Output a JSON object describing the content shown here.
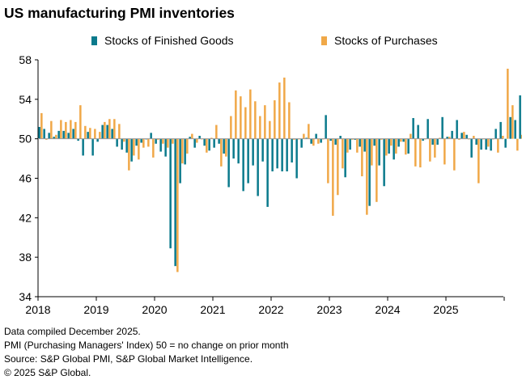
{
  "title": "US manufacturing PMI inventories",
  "footnotes": [
    "Data compiled December 2025.",
    "PMI (Purchasing Managers' Index) 50 = no change on prior month",
    "Source: S&P Global PMI, S&P Global Market Intelligence.",
    "© 2025 S&P Global."
  ],
  "chart_data": {
    "type": "bar",
    "title": "US manufacturing PMI inventories",
    "baseline": 50,
    "ylim": [
      34,
      58
    ],
    "yticks": [
      34,
      38,
      42,
      46,
      50,
      54,
      58
    ],
    "xticks": [
      "2018",
      "2019",
      "2020",
      "2021",
      "2022",
      "2023",
      "2024",
      "2025"
    ],
    "grid": false,
    "legend_position": "top",
    "x_start": "2018-01",
    "series": [
      {
        "name": "Stocks of Finished Goods",
        "color": "#0b7a8c",
        "values": [
          51.2,
          51.0,
          50.6,
          50.2,
          50.8,
          50.8,
          50.6,
          51.0,
          49.8,
          48.3,
          50.7,
          48.3,
          49.7,
          51.4,
          51.4,
          51.0,
          49.2,
          48.9,
          48.6,
          47.7,
          49.3,
          49.6,
          50.0,
          50.6,
          49.5,
          48.7,
          48.2,
          38.9,
          37.1,
          45.5,
          47.4,
          50.2,
          49.1,
          50.3,
          49.3,
          48.8,
          49.1,
          49.5,
          48.5,
          45.1,
          48.0,
          47.5,
          44.7,
          45.5,
          47.3,
          44.2,
          47.7,
          43.1,
          46.7,
          47.0,
          46.7,
          46.7,
          47.6,
          46.0,
          49.1,
          50.1,
          49.5,
          50.5,
          49.6,
          52.4,
          49.8,
          49.4,
          50.3,
          46.1,
          48.9,
          49.9,
          49.2,
          48.7,
          43.2,
          49.3,
          47.3,
          45.2,
          48.5,
          47.9,
          49.2,
          49.7,
          48.5,
          52.1,
          51.4,
          49.8,
          52.0,
          49.4,
          49.4,
          52.2,
          50.2,
          50.8,
          51.9,
          50.6,
          50.4,
          48.1,
          49.4,
          48.9,
          48.9,
          48.8,
          51.0,
          51.7,
          49.1,
          52.2,
          51.9,
          54.4,
          54.9
        ]
      },
      {
        "name": "Stocks of Purchases",
        "color": "#f0a848",
        "values": [
          52.6,
          49.9,
          51.8,
          50.4,
          51.9,
          51.7,
          51.9,
          51.7,
          53.4,
          51.3,
          51.1,
          51.0,
          50.7,
          51.7,
          52.0,
          52.0,
          51.5,
          49.7,
          46.8,
          48.3,
          47.9,
          49.1,
          49.2,
          48.1,
          49.9,
          49.5,
          49.1,
          49.5,
          36.5,
          47.5,
          48.5,
          50.5,
          49.6,
          50.0,
          48.6,
          50.1,
          51.4,
          47.2,
          48.2,
          52.3,
          54.9,
          54.3,
          53.2,
          55.0,
          53.8,
          52.3,
          53.4,
          51.8,
          53.9,
          55.7,
          56.2,
          53.7,
          49.9,
          50.0,
          50.5,
          51.5,
          49.3,
          49.5,
          50.0,
          45.5,
          42.2,
          44.3,
          47.0,
          48.6,
          49.9,
          48.6,
          46.2,
          42.3,
          47.3,
          43.6,
          49.9,
          48.3,
          49.3,
          48.5,
          49.7,
          48.4,
          50.5,
          47.2,
          47.1,
          50.0,
          47.7,
          48.1,
          50.1,
          47.4,
          50.2,
          46.8,
          49.9,
          50.7,
          50.0,
          50.3,
          45.5,
          50.0,
          49.2,
          50.0,
          48.6,
          50.3,
          57.1,
          53.4,
          48.8,
          50.4,
          51.2
        ]
      }
    ]
  }
}
